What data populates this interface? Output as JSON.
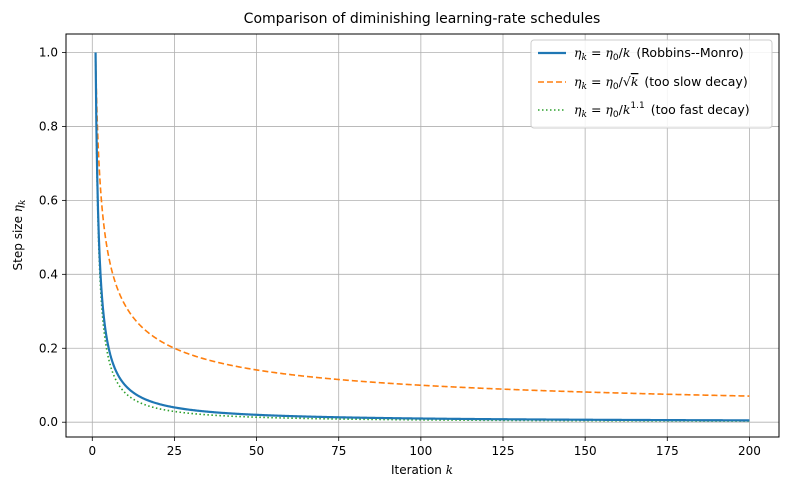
{
  "chart_data": {
    "type": "line",
    "title": "Comparison of diminishing learning-rate schedules",
    "xlabel_text": "Iteration ",
    "xlabel_var": "k",
    "ylabel_text": "Step size ",
    "ylabel_var": "η",
    "ylabel_sub": "k",
    "xlim": [
      -8,
      209
    ],
    "ylim": [
      -0.04,
      1.05
    ],
    "xticks": [
      0,
      25,
      50,
      75,
      100,
      125,
      150,
      175,
      200
    ],
    "yticks": [
      0.0,
      0.2,
      0.4,
      0.6,
      0.8,
      1.0
    ],
    "xtick_labels": [
      "0",
      "25",
      "50",
      "75",
      "100",
      "125",
      "150",
      "175",
      "200"
    ],
    "ytick_labels": [
      "0.0",
      "0.2",
      "0.4",
      "0.6",
      "0.8",
      "1.0"
    ],
    "grid": true,
    "legend_position": "top-right",
    "x_range": [
      1,
      200
    ],
    "eta0": 1.0,
    "series": [
      {
        "key": "robbins",
        "exponent": 1.0,
        "color": "#1f77b4",
        "style": "solid",
        "label_formula": "η_k = η_0/k",
        "label_note": "(Robbins--Monro)"
      },
      {
        "key": "sqrt",
        "exponent": 0.5,
        "color": "#ff7f0e",
        "style": "dashed",
        "label_formula": "η_k = η_0/√k",
        "label_note": "(too slow decay)"
      },
      {
        "key": "fast",
        "exponent": 1.1,
        "color": "#2ca02c",
        "style": "dotted",
        "label_formula": "η_k = η_0/k^1.1",
        "label_note": "(too fast decay)"
      }
    ]
  }
}
